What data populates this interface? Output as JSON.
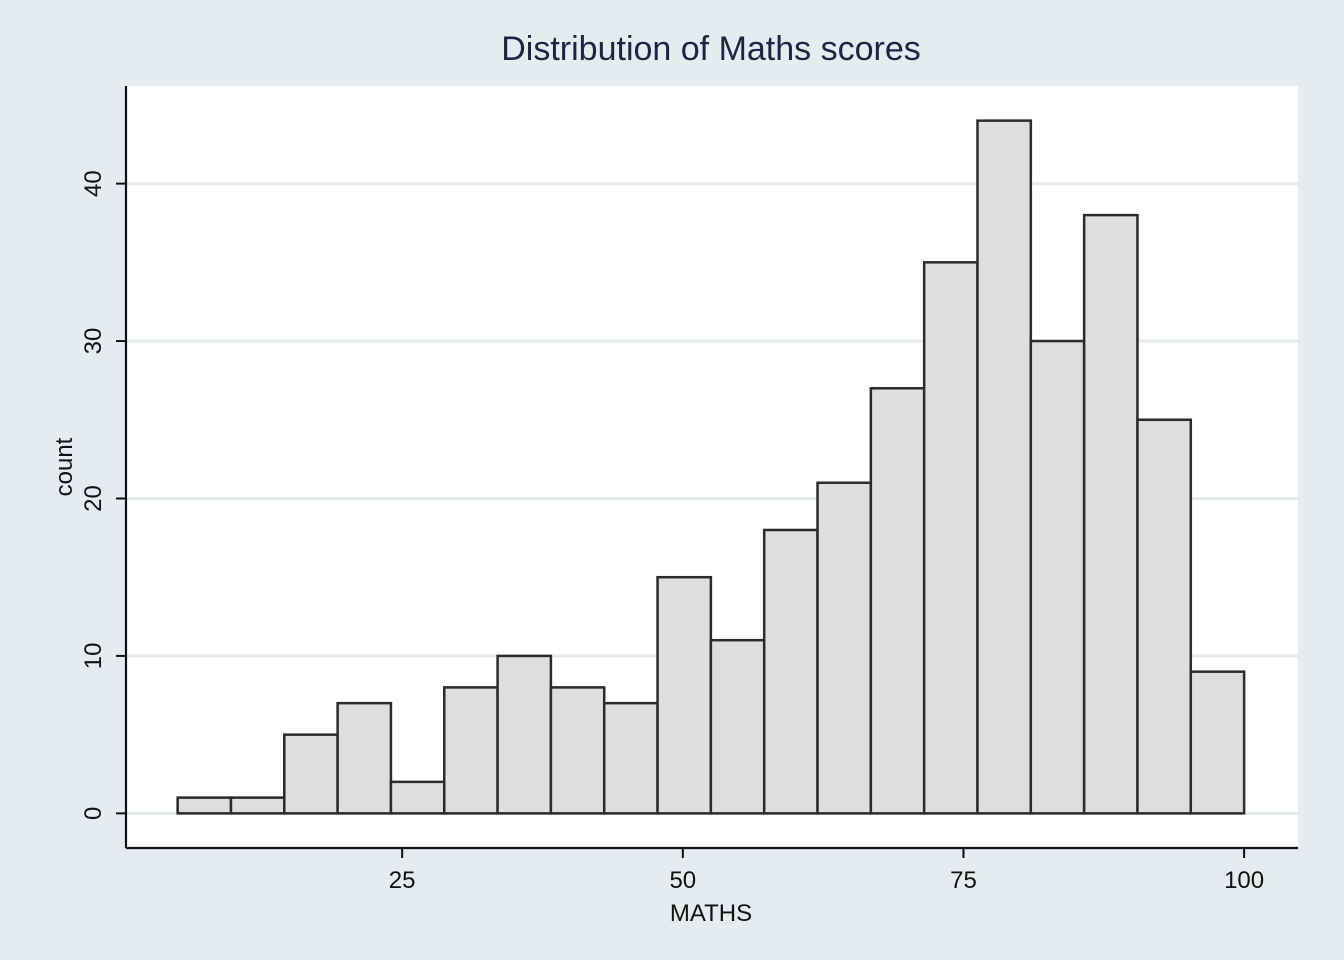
{
  "chart_data": {
    "type": "bar",
    "title": "Distribution of Maths scores",
    "xlabel": "MATHS",
    "ylabel": "count",
    "bin_start": 5.0,
    "bin_width": 4.75,
    "values": [
      1,
      1,
      5,
      7,
      2,
      8,
      10,
      8,
      7,
      15,
      11,
      18,
      21,
      27,
      35,
      44,
      30,
      38,
      25,
      9
    ],
    "xlim": [
      0.4,
      104.8
    ],
    "ylim": [
      -2.2,
      46.2
    ],
    "xticks": [
      25,
      50,
      75,
      100
    ],
    "xtick_labels": [
      "25",
      "50",
      "75",
      "100"
    ],
    "yticks": [
      0,
      10,
      20,
      30,
      40
    ],
    "ytick_labels": [
      "0",
      "10",
      "20",
      "30",
      "40"
    ],
    "grid": true,
    "colors": {
      "background": "#e4ecee",
      "plot_background": "#ffffff",
      "bar_fill": "#dedede",
      "bar_edge": "#2b2b2b",
      "title": "#1a2646"
    }
  }
}
